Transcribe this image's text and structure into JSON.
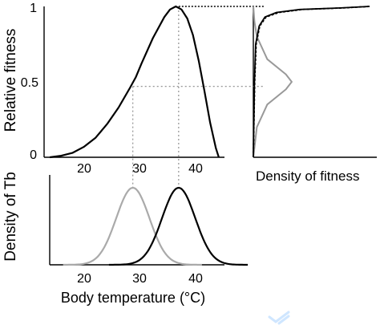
{
  "chart_data": [
    {
      "id": "fitness-curve",
      "type": "line",
      "ylabel": "Relative fitness",
      "xlabel": "",
      "y_ticks": [
        "0",
        "0.5",
        "1"
      ],
      "x_ticks": [
        "20",
        "30",
        "40"
      ],
      "ylim": [
        0,
        1
      ],
      "xlim": [
        14,
        45.5
      ],
      "series": [
        {
          "color": "#000000",
          "x": [
            15,
            17,
            19,
            21,
            23,
            25,
            27,
            29,
            30,
            31,
            33,
            35,
            36,
            37,
            38,
            39,
            40,
            41,
            42,
            43,
            44,
            44.5
          ],
          "y": [
            0.0,
            0.01,
            0.03,
            0.07,
            0.13,
            0.22,
            0.33,
            0.46,
            0.53,
            0.62,
            0.79,
            0.93,
            0.98,
            1.0,
            0.98,
            0.92,
            0.81,
            0.64,
            0.44,
            0.23,
            0.06,
            0.0
          ]
        }
      ],
      "reference_lines": [
        {
          "type": "vertical",
          "x": 37.5,
          "y_from": 0,
          "y_to": 1
        },
        {
          "type": "horizontal",
          "y": 1,
          "x_from": 37.5
        },
        {
          "type": "vertical",
          "x": 29.5,
          "y_from": 0,
          "y_to": 0.47
        },
        {
          "type": "horizontal",
          "y": 0.47,
          "x_from": 29.5
        }
      ]
    },
    {
      "id": "fitness-density",
      "type": "line",
      "xlabel": "Density of fitness",
      "ylim": [
        0,
        1
      ],
      "series": [
        {
          "color": "#999999",
          "style": "solid",
          "y": [
            0.0,
            0.2,
            0.35,
            0.45,
            0.5,
            0.55,
            0.65,
            0.8,
            0.9,
            1.0
          ],
          "density": [
            0.0,
            0.03,
            0.12,
            0.28,
            0.33,
            0.28,
            0.12,
            0.03,
            0.01,
            0.0
          ]
        },
        {
          "color": "#000000",
          "style": "solid",
          "y": [
            0.0,
            0.5,
            0.75,
            0.87,
            0.93,
            0.96,
            0.98,
            0.99,
            1.0
          ],
          "density": [
            0.0,
            0.01,
            0.02,
            0.05,
            0.1,
            0.2,
            0.4,
            0.75,
            1.0
          ]
        },
        {
          "color": "#000000",
          "style": "dashed",
          "y": [
            0.0,
            0.5,
            0.75,
            0.87,
            0.93,
            0.96,
            0.98,
            0.99,
            1.0
          ],
          "density": [
            0.0,
            0.012,
            0.024,
            0.055,
            0.11,
            0.22,
            0.42,
            0.77,
            1.0
          ]
        }
      ]
    },
    {
      "id": "tb-density",
      "type": "line",
      "ylabel": "Density of Tb",
      "xlabel": "Body temperature (°C)",
      "x_ticks": [
        "20",
        "30",
        "40"
      ],
      "xlim": [
        14,
        45.5
      ],
      "series": [
        {
          "color": "#aaaaaa",
          "mean": 29.5,
          "sd": 2.9,
          "peak": 1.0
        },
        {
          "color": "#000000",
          "mean": 37.5,
          "sd": 2.9,
          "peak": 1.0
        }
      ]
    }
  ]
}
